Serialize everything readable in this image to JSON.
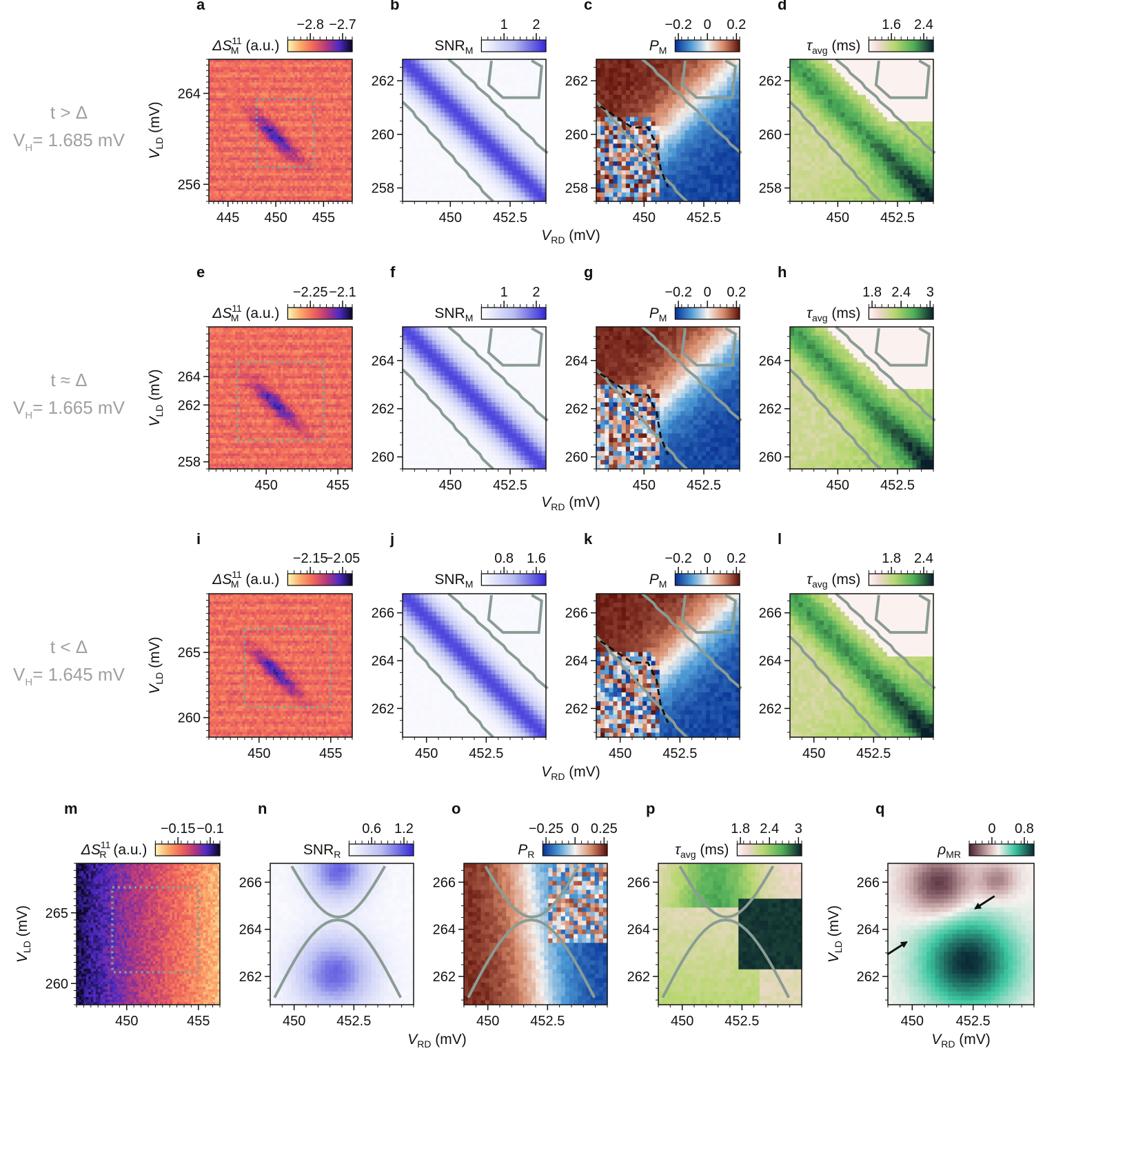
{
  "figure": {
    "rows": [
      {
        "condition": "t > Δ",
        "vh": "V = 1.685 mV",
        "vh_sub": "H",
        "xlabel": "V",
        "xlabel_sub": "RD",
        "xlabel_unit": " (mV)"
      },
      {
        "condition": "t ≈ Δ",
        "vh": "V = 1.665 mV",
        "vh_sub": "H",
        "xlabel": "V",
        "xlabel_sub": "RD",
        "xlabel_unit": " (mV)"
      },
      {
        "condition": "t < Δ",
        "vh": "V = 1.645 mV",
        "vh_sub": "H",
        "xlabel": "V",
        "xlabel_sub": "RD",
        "xlabel_unit": " (mV)"
      },
      {
        "condition": "",
        "vh": "",
        "vh_sub": "",
        "xlabel": "V",
        "xlabel_sub": "RD",
        "xlabel_unit": " (mV)"
      }
    ],
    "ylabel": {
      "main": "V",
      "sub": "LD",
      "unit": " (mV)"
    },
    "colors": {
      "contour": "#8a9c94",
      "dotted_box": "#8a9c94",
      "condition_text": "#a0a0a0"
    }
  },
  "chart_data": [
    {
      "panel": "a",
      "type": "heatmap",
      "kind": "raw",
      "quantity": "ΔS",
      "sup": "11",
      "sub": "M",
      "unit": " (a.u.)",
      "cmap": "magma",
      "cbar_ticks": [
        "−2.8",
        "−2.7"
      ],
      "xticks": [
        "445",
        "450",
        "455"
      ],
      "yticks": [
        "264",
        "256"
      ],
      "xlim": [
        443,
        458
      ],
      "ylim": [
        254.5,
        267
      ],
      "dotted_box": [
        448,
        454,
        257.5,
        263.5
      ]
    },
    {
      "panel": "b",
      "type": "heatmap",
      "kind": "snr",
      "quantity": "SNR",
      "sub": "M",
      "unit": "",
      "cmap": "blues",
      "cbar_ticks": [
        "1",
        "2"
      ],
      "xticks": [
        "450",
        "452.5"
      ],
      "yticks": [
        "262",
        "260",
        "258"
      ],
      "xlim": [
        448,
        454
      ],
      "ylim": [
        257.5,
        262.8
      ]
    },
    {
      "panel": "c",
      "type": "heatmap",
      "kind": "pol",
      "quantity": "P",
      "sub": "M",
      "unit": "",
      "cmap": "diverging",
      "cbar_ticks": [
        "−0.2",
        "0",
        "0.2"
      ],
      "xticks": [
        "450",
        "452.5"
      ],
      "yticks": [
        "262",
        "260",
        "258"
      ],
      "xlim": [
        448,
        454
      ],
      "ylim": [
        257.5,
        262.8
      ]
    },
    {
      "panel": "d",
      "type": "heatmap",
      "kind": "tau",
      "quantity": "τ",
      "sub": "avg",
      "unit": " (ms)",
      "cmap": "green",
      "cbar_ticks": [
        "1.6",
        "2.4"
      ],
      "xticks": [
        "450",
        "452.5"
      ],
      "yticks": [
        "262",
        "260",
        "258"
      ],
      "xlim": [
        448,
        454
      ],
      "ylim": [
        257.5,
        262.8
      ]
    },
    {
      "panel": "e",
      "type": "heatmap",
      "kind": "raw",
      "quantity": "ΔS",
      "sup": "11",
      "sub": "M",
      "unit": " (a.u.)",
      "cmap": "magma",
      "cbar_ticks": [
        "−2.25",
        "−2.1"
      ],
      "xticks": [
        "450",
        "455"
      ],
      "yticks": [
        "264",
        "262",
        "258"
      ],
      "xlim": [
        446,
        456
      ],
      "ylim": [
        257.5,
        267.5
      ],
      "dotted_box": [
        448,
        454,
        259.5,
        265
      ]
    },
    {
      "panel": "f",
      "type": "heatmap",
      "kind": "snr",
      "quantity": "SNR",
      "sub": "M",
      "unit": "",
      "cmap": "blues",
      "cbar_ticks": [
        "1",
        "2"
      ],
      "xticks": [
        "450",
        "452.5"
      ],
      "yticks": [
        "264",
        "262",
        "260"
      ],
      "xlim": [
        448,
        454
      ],
      "ylim": [
        259.5,
        265.4
      ]
    },
    {
      "panel": "g",
      "type": "heatmap",
      "kind": "pol",
      "quantity": "P",
      "sub": "M",
      "unit": "",
      "cmap": "diverging",
      "cbar_ticks": [
        "−0.2",
        "0",
        "0.2"
      ],
      "xticks": [
        "450",
        "452.5"
      ],
      "yticks": [
        "264",
        "262",
        "260"
      ],
      "xlim": [
        448,
        454
      ],
      "ylim": [
        259.5,
        265.4
      ]
    },
    {
      "panel": "h",
      "type": "heatmap",
      "kind": "tau",
      "quantity": "τ",
      "sub": "avg",
      "unit": " (ms)",
      "cmap": "green",
      "cbar_ticks": [
        "1.8",
        "2.4",
        "3"
      ],
      "xticks": [
        "450",
        "452.5"
      ],
      "yticks": [
        "264",
        "262",
        "260"
      ],
      "xlim": [
        448,
        454
      ],
      "ylim": [
        259.5,
        265.4
      ]
    },
    {
      "panel": "i",
      "type": "heatmap",
      "kind": "raw",
      "quantity": "ΔS",
      "sup": "11",
      "sub": "M",
      "unit": " (a.u.)",
      "cmap": "magma",
      "cbar_ticks": [
        "−2.15",
        "−2.05"
      ],
      "xticks": [
        "450",
        "455"
      ],
      "yticks": [
        "265",
        "260"
      ],
      "xlim": [
        446.5,
        456.5
      ],
      "ylim": [
        258.5,
        269.5
      ],
      "dotted_box": [
        449,
        455,
        260.8,
        266.8
      ]
    },
    {
      "panel": "j",
      "type": "heatmap",
      "kind": "snr",
      "quantity": "SNR",
      "sub": "M",
      "unit": "",
      "cmap": "blues",
      "cbar_ticks": [
        "0.8",
        "1.6"
      ],
      "xticks": [
        "450",
        "452.5"
      ],
      "yticks": [
        "266",
        "264",
        "262"
      ],
      "xlim": [
        449,
        455
      ],
      "ylim": [
        260.8,
        266.8
      ]
    },
    {
      "panel": "k",
      "type": "heatmap",
      "kind": "pol",
      "quantity": "P",
      "sub": "M",
      "unit": "",
      "cmap": "diverging",
      "cbar_ticks": [
        "−0.2",
        "0",
        "0.2"
      ],
      "xticks": [
        "450",
        "452.5"
      ],
      "yticks": [
        "266",
        "264",
        "262"
      ],
      "xlim": [
        449,
        455
      ],
      "ylim": [
        260.8,
        266.8
      ]
    },
    {
      "panel": "l",
      "type": "heatmap",
      "kind": "tau",
      "quantity": "τ",
      "sub": "avg",
      "unit": " (ms)",
      "cmap": "green",
      "cbar_ticks": [
        "1.8",
        "2.4"
      ],
      "xticks": [
        "450",
        "452.5"
      ],
      "yticks": [
        "266",
        "264",
        "262"
      ],
      "xlim": [
        449,
        455
      ],
      "ylim": [
        260.8,
        266.8
      ]
    },
    {
      "panel": "m",
      "type": "heatmap",
      "kind": "rawR",
      "quantity": "ΔS",
      "sup": "11",
      "sub": "R",
      "unit": " (a.u.)",
      "cmap": "magma",
      "cbar_ticks": [
        "−0.15",
        "−0.1"
      ],
      "xticks": [
        "450",
        "455"
      ],
      "yticks": [
        "265",
        "260"
      ],
      "xlim": [
        446.5,
        456.5
      ],
      "ylim": [
        258.5,
        268.5
      ],
      "dotted_box": [
        449,
        455,
        260.8,
        266.8
      ]
    },
    {
      "panel": "n",
      "type": "heatmap",
      "kind": "snrR",
      "quantity": "SNR",
      "sub": "R",
      "unit": "",
      "cmap": "blues",
      "cbar_ticks": [
        "0.6",
        "1.2"
      ],
      "xticks": [
        "450",
        "452.5"
      ],
      "yticks": [
        "266",
        "264",
        "262"
      ],
      "xlim": [
        449,
        455
      ],
      "ylim": [
        260.8,
        266.8
      ]
    },
    {
      "panel": "o",
      "type": "heatmap",
      "kind": "polR",
      "quantity": "P",
      "sub": "R",
      "unit": "",
      "cmap": "diverging",
      "cbar_ticks": [
        "−0.25",
        "0",
        "0.25"
      ],
      "xticks": [
        "450",
        "452.5"
      ],
      "yticks": [
        "266",
        "264",
        "262"
      ],
      "xlim": [
        449,
        455
      ],
      "ylim": [
        260.8,
        266.8
      ]
    },
    {
      "panel": "p",
      "type": "heatmap",
      "kind": "tauR",
      "quantity": "τ",
      "sub": "avg",
      "unit": " (ms)",
      "cmap": "green",
      "cbar_ticks": [
        "1.8",
        "2.4",
        "3"
      ],
      "xticks": [
        "450",
        "452.5"
      ],
      "yticks": [
        "266",
        "264",
        "262"
      ],
      "xlim": [
        449,
        455
      ],
      "ylim": [
        260.8,
        266.8
      ]
    },
    {
      "panel": "q",
      "type": "heatmap",
      "kind": "rho",
      "quantity": "ρ",
      "sub": "MR",
      "unit": "",
      "cmap": "rho",
      "cbar_ticks": [
        "0",
        "0.8"
      ],
      "xticks": [
        "450",
        "452.5"
      ],
      "yticks": [
        "266",
        "264",
        "262"
      ],
      "xlim": [
        449,
        455
      ],
      "ylim": [
        260.8,
        266.8
      ],
      "arrows": [
        [
          449.6,
          263.4
        ],
        [
          452.7,
          265.0
        ]
      ]
    }
  ]
}
